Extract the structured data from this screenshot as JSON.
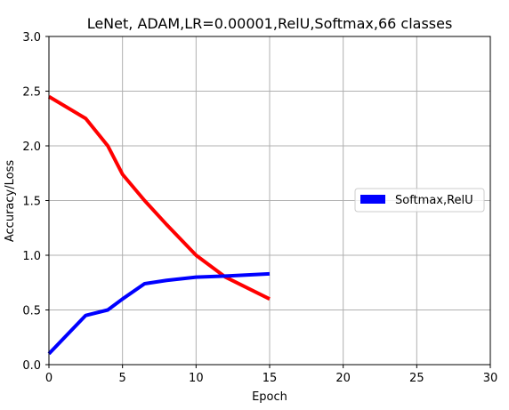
{
  "chart_data": {
    "type": "line",
    "title": "LeNet, ADAM,LR=0.00001,RelU,Softmax,66 classes",
    "xlabel": "Epoch",
    "ylabel": "Accuracy/Loss",
    "xlim": [
      0,
      30
    ],
    "ylim": [
      0,
      3.0
    ],
    "xticks": [
      "0",
      "5",
      "10",
      "15",
      "20",
      "25",
      "30"
    ],
    "yticks": [
      "0.0",
      "0.5",
      "1.0",
      "1.5",
      "2.0",
      "2.5",
      "3.0"
    ],
    "grid": true,
    "legend_placement": "center-right",
    "legend": [
      {
        "label": "Softmax,RelU",
        "color": "#0000ff"
      }
    ],
    "series": [
      {
        "color": "#ff0000",
        "x": [
          0,
          2.5,
          4,
          5,
          6.5,
          8,
          10,
          12,
          15
        ],
        "y": [
          2.45,
          2.25,
          2.0,
          1.74,
          1.5,
          1.28,
          1.0,
          0.8,
          0.6
        ]
      },
      {
        "color": "#0000ff",
        "x": [
          0,
          2.5,
          4,
          5,
          6.5,
          8,
          10,
          12,
          15
        ],
        "y": [
          0.1,
          0.45,
          0.5,
          0.6,
          0.74,
          0.77,
          0.8,
          0.81,
          0.83
        ]
      }
    ]
  }
}
